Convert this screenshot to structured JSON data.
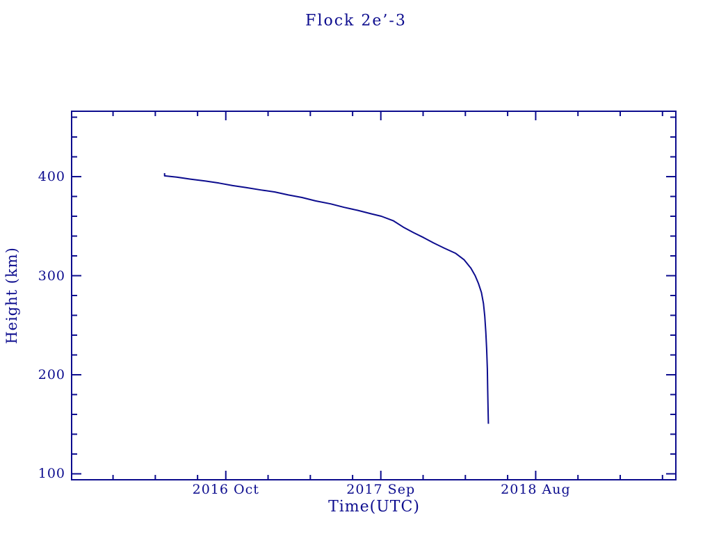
{
  "colors": {
    "ink": "#0c0c8e",
    "background": "#ffffff"
  },
  "chart_data": {
    "type": "line",
    "title": "Flock 2e’-3",
    "xlabel": "Time(UTC)",
    "ylabel": "Height (km)",
    "xlim": [
      2015.838,
      2019.412
    ],
    "ylim": [
      94,
      466
    ],
    "grid": false,
    "legend_position": "none",
    "x_major_ticks": [
      {
        "value": 2016.75,
        "label": "2016 Oct"
      },
      {
        "value": 2017.667,
        "label": "2017 Sep"
      },
      {
        "value": 2018.583,
        "label": "2018 Aug"
      }
    ],
    "x_minor_ticks": [
      2016.083,
      2016.333,
      2016.583,
      2017.0,
      2017.25,
      2017.5,
      2017.917,
      2018.167,
      2018.417,
      2018.833,
      2019.083,
      2019.333
    ],
    "y_major_ticks": [
      {
        "value": 100,
        "label": "100"
      },
      {
        "value": 200,
        "label": "200"
      },
      {
        "value": 300,
        "label": "300"
      },
      {
        "value": 400,
        "label": "400"
      }
    ],
    "y_minor_ticks": [
      120,
      140,
      160,
      180,
      220,
      240,
      260,
      280,
      320,
      340,
      360,
      380,
      420,
      440,
      460
    ],
    "series": [
      {
        "name": "height",
        "color": "#0c0c8e",
        "points": [
          [
            2016.388,
            403.5
          ],
          [
            2016.388,
            400.8
          ],
          [
            2016.46,
            399.5
          ],
          [
            2016.54,
            397.5
          ],
          [
            2016.63,
            395.5
          ],
          [
            2016.71,
            393.5
          ],
          [
            2016.79,
            391.0
          ],
          [
            2016.87,
            389.0
          ],
          [
            2016.96,
            386.5
          ],
          [
            2017.04,
            384.5
          ],
          [
            2017.12,
            381.5
          ],
          [
            2017.2,
            379.0
          ],
          [
            2017.28,
            375.5
          ],
          [
            2017.37,
            372.5
          ],
          [
            2017.45,
            369.0
          ],
          [
            2017.53,
            366.0
          ],
          [
            2017.61,
            362.5
          ],
          [
            2017.67,
            360.0
          ],
          [
            2017.74,
            355.5
          ],
          [
            2017.8,
            349.0
          ],
          [
            2017.86,
            343.5
          ],
          [
            2017.92,
            338.5
          ],
          [
            2017.98,
            333.0
          ],
          [
            2018.04,
            328.0
          ],
          [
            2018.11,
            322.5
          ],
          [
            2018.16,
            316.0
          ],
          [
            2018.2,
            307.5
          ],
          [
            2018.225,
            300.0
          ],
          [
            2018.245,
            292.0
          ],
          [
            2018.262,
            283.0
          ],
          [
            2018.274,
            272.0
          ],
          [
            2018.282,
            259.0
          ],
          [
            2018.288,
            243.0
          ],
          [
            2018.293,
            226.0
          ],
          [
            2018.297,
            206.0
          ],
          [
            2018.299,
            185.0
          ],
          [
            2018.301,
            167.0
          ],
          [
            2018.303,
            150.5
          ]
        ]
      }
    ]
  }
}
